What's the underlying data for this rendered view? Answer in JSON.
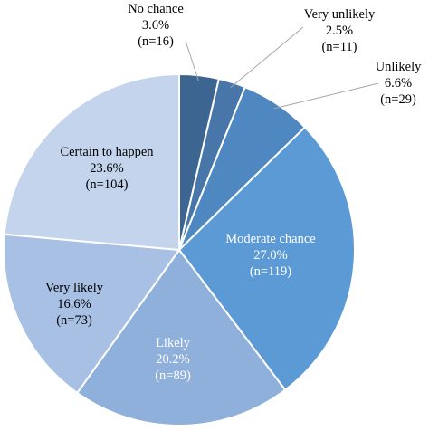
{
  "chart_data": {
    "type": "pie",
    "title": "",
    "start": "12 o'clock",
    "direction": "clockwise",
    "outline_color": "#ffffff",
    "slices": [
      {
        "name": "No chance",
        "pct_label": "3.6%",
        "n_label": "(n=16)",
        "value": 16,
        "color": "#3d6591",
        "label_color": "#000000",
        "label_inside": false
      },
      {
        "name": "Very unlikely",
        "pct_label": "2.5%",
        "n_label": "(n=11)",
        "value": 11,
        "color": "#4876a8",
        "label_color": "#000000",
        "label_inside": false
      },
      {
        "name": "Unlikely",
        "pct_label": "6.6%",
        "n_label": "(n=29)",
        "value": 29,
        "color": "#4f87c1",
        "label_color": "#000000",
        "label_inside": false
      },
      {
        "name": "Moderate chance",
        "pct_label": "27.0%",
        "n_label": "(n=119)",
        "value": 119,
        "color": "#5c9ad6",
        "label_color": "#ffffff",
        "label_inside": true
      },
      {
        "name": "Likely",
        "pct_label": "20.2%",
        "n_label": "(n=89)",
        "value": 89,
        "color": "#8fb0da",
        "label_color": "#ffffff",
        "label_inside": true
      },
      {
        "name": "Very likely",
        "pct_label": "16.6%",
        "n_label": "(n=73)",
        "value": 73,
        "color": "#a7c0e3",
        "label_color": "#000000",
        "label_inside": true
      },
      {
        "name": "Certain to happen",
        "pct_label": "23.6%",
        "n_label": "(n=104)",
        "value": 104,
        "color": "#c3d4ec",
        "label_color": "#000000",
        "label_inside": true
      }
    ]
  }
}
